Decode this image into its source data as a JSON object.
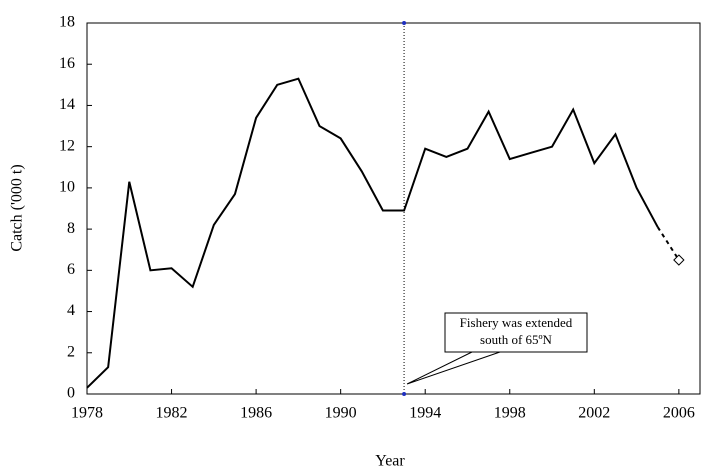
{
  "chart_data": {
    "type": "line",
    "x_label": "Year",
    "y_label": "Catch ('000 t)",
    "x": [
      1978,
      1979,
      1980,
      1981,
      1982,
      1983,
      1984,
      1985,
      1986,
      1987,
      1988,
      1989,
      1990,
      1991,
      1992,
      1993,
      1994,
      1995,
      1996,
      1997,
      1998,
      1999,
      2000,
      2001,
      2002,
      2003,
      2004,
      2005,
      2006
    ],
    "series": [
      {
        "color": "#000000",
        "dash": "solid",
        "values": [
          0.3,
          1.3,
          10.3,
          6.0,
          6.1,
          5.2,
          8.2,
          9.7,
          13.4,
          15.0,
          15.3,
          13.0,
          12.4,
          10.8,
          8.9,
          8.9,
          11.9,
          11.5,
          11.9,
          13.7,
          11.4,
          11.7,
          12.0,
          13.8,
          11.2,
          12.6,
          10.0,
          8.1,
          null
        ]
      },
      {
        "color": "#000000",
        "dash": "dashed",
        "marker": "diamond",
        "values": [
          null,
          null,
          null,
          null,
          null,
          null,
          null,
          null,
          null,
          null,
          null,
          null,
          null,
          null,
          null,
          null,
          null,
          null,
          null,
          null,
          null,
          null,
          null,
          null,
          null,
          null,
          null,
          8.1,
          6.5
        ]
      }
    ],
    "xlim": [
      1978,
      2007
    ],
    "xticks": [
      1978,
      1982,
      1986,
      1990,
      1994,
      1998,
      2002,
      2006
    ],
    "ylim": [
      0,
      18
    ],
    "yticks": [
      0,
      2,
      4,
      6,
      8,
      10,
      12,
      14,
      16,
      18
    ],
    "grid": false,
    "vline": 1993,
    "annotation": [
      "Fishery was extended",
      "south of 65ºN"
    ]
  }
}
